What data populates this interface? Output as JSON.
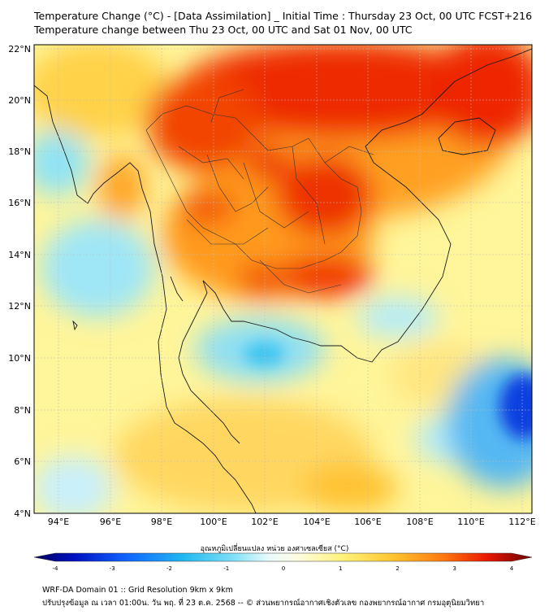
{
  "title_line1": "Temperature Change (°C) - [Data Assimilation] _ Initial Time : Thursday 23 Oct, 00 UTC FCST+216",
  "title_line2": "Temperature change between Thu 23 Oct, 00 UTC and Sat 01 Nov, 00 UTC",
  "colorbar": {
    "label": "อุณหภูมิเปลี่ยนแปลง หน่วย องศาเซลเซียส (°C)",
    "min": -4,
    "max": 4,
    "ticks": [
      "-4",
      "-3",
      "-2",
      "-1",
      "0",
      "1",
      "2",
      "3",
      "4"
    ]
  },
  "axes": {
    "lon_labels": [
      "94°E",
      "96°E",
      "98°E",
      "100°E",
      "102°E",
      "104°E",
      "106°E",
      "108°E",
      "110°E",
      "112°E"
    ],
    "lat_labels": [
      "22°N",
      "20°N",
      "18°N",
      "16°N",
      "14°N",
      "12°N",
      "10°N",
      "8°N",
      "6°N",
      "4°N"
    ]
  },
  "footer_line1": "WRF-DA Domain 01 :: Grid Resolution 9km x 9km",
  "footer_line2": "ปรับปรุงข้อมูล ณ เวลา 01:00น. วัน พฤ. ที่ 23 ต.ค. 2568 -- © ส่วนพยากรณ์อากาศเชิงตัวเลข กองพยากรณ์อากาศ กรมอุตุนิยมวิทยา"
}
